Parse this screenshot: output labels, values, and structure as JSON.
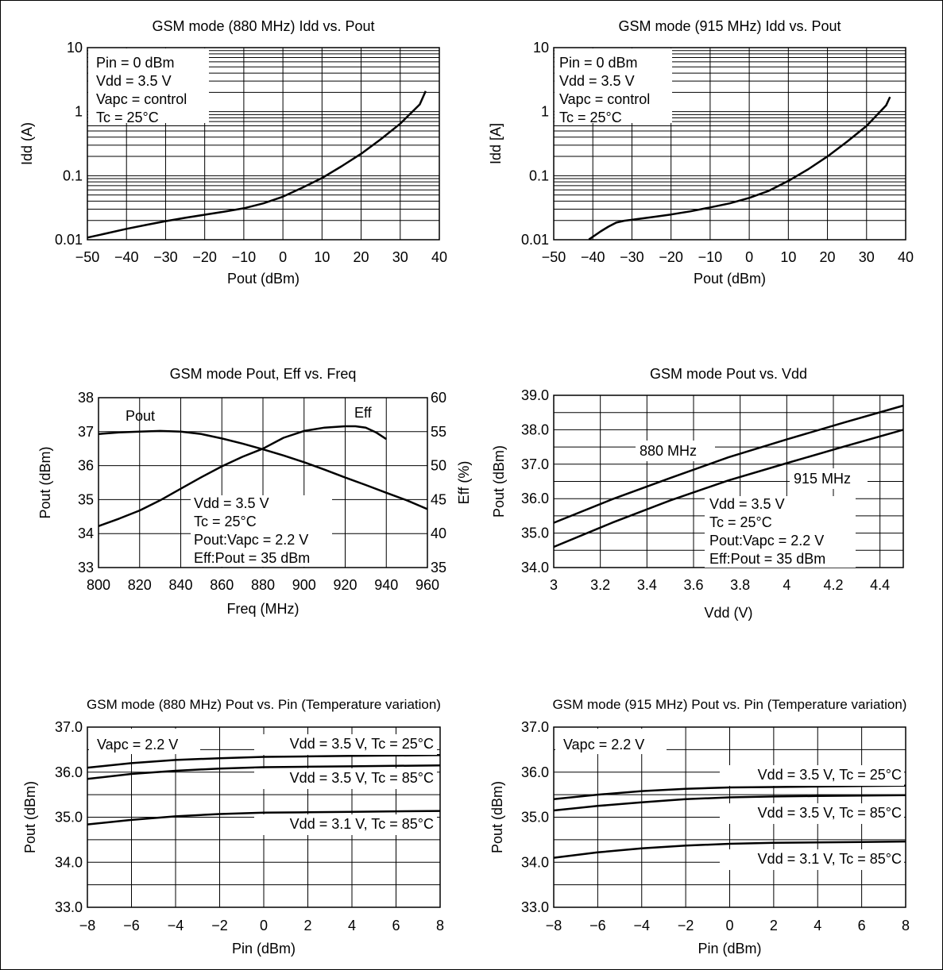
{
  "chart_data": [
    {
      "id": "c1",
      "type": "line",
      "title": "GSM mode (880 MHz) Idd vs. Pout",
      "xlabel": "Pout  (dBm)",
      "ylabel": "Idd  (A)",
      "xlim": [
        -50,
        40
      ],
      "ylim": [
        0.01,
        10
      ],
      "yscale": "log",
      "xticks": [
        -50,
        -40,
        -30,
        -20,
        -10,
        0,
        10,
        20,
        30,
        40
      ],
      "xtick_labels": [
        "−50",
        "−40",
        "−30",
        "−20",
        "−10",
        "0",
        "10",
        "20",
        "30",
        "40"
      ],
      "yticks": [
        0.01,
        0.1,
        1,
        10
      ],
      "ytick_labels": [
        "0.01",
        "0.1",
        "1",
        "10"
      ],
      "grid": true,
      "annotation": [
        "Pin = 0 dBm",
        "Vdd = 3.5 V",
        "Vapc = control",
        "Tc = 25°C"
      ],
      "series": [
        {
          "x": [
            -50,
            -45,
            -40,
            -35,
            -30,
            -25,
            -20,
            -15,
            -10,
            -5,
            0,
            5,
            10,
            15,
            20,
            25,
            30,
            35,
            36.5
          ],
          "y": [
            0.0108,
            0.0126,
            0.0148,
            0.017,
            0.0195,
            0.022,
            0.0246,
            0.0275,
            0.031,
            0.037,
            0.047,
            0.065,
            0.092,
            0.14,
            0.22,
            0.37,
            0.65,
            1.3,
            2.1
          ]
        }
      ]
    },
    {
      "id": "c2",
      "type": "line",
      "title": "GSM mode (915 MHz) Idd vs. Pout",
      "xlabel": "Pout  (dBm)",
      "ylabel": "Idd [A]",
      "xlim": [
        -50,
        40
      ],
      "ylim": [
        0.01,
        10
      ],
      "yscale": "log",
      "xticks": [
        -50,
        -40,
        -30,
        -20,
        -10,
        0,
        10,
        20,
        30,
        40
      ],
      "xtick_labels": [
        "−50",
        "−40",
        "−30",
        "−20",
        "−10",
        "0",
        "10",
        "20",
        "30",
        "40"
      ],
      "yticks": [
        0.01,
        0.1,
        1,
        10
      ],
      "ytick_labels": [
        "0.01",
        "0.1",
        "1",
        "10"
      ],
      "grid": true,
      "annotation": [
        "Pin = 0 dBm",
        "Vdd = 3.5 V",
        "Vapc = control",
        "Tc = 25°C"
      ],
      "series": [
        {
          "x": [
            -41,
            -38,
            -36,
            -34,
            -32,
            -30,
            -25,
            -20,
            -15,
            -10,
            -5,
            0,
            5,
            10,
            15,
            20,
            25,
            30,
            35,
            36
          ],
          "y": [
            0.0101,
            0.0135,
            0.016,
            0.0185,
            0.0198,
            0.0205,
            0.0225,
            0.0248,
            0.0278,
            0.032,
            0.037,
            0.045,
            0.058,
            0.083,
            0.125,
            0.2,
            0.34,
            0.6,
            1.25,
            1.7
          ]
        }
      ]
    },
    {
      "id": "c3",
      "type": "line",
      "title": "GSM mode  Pout, Eff vs. Freq",
      "xlabel": "Freq  (MHz)",
      "ylabel": "Pout  (dBm)",
      "y2label": "Eff  (%)",
      "xlim": [
        800,
        960
      ],
      "ylim": [
        33,
        38
      ],
      "y2lim": [
        35,
        60
      ],
      "xticks": [
        800,
        820,
        840,
        860,
        880,
        900,
        920,
        940,
        960
      ],
      "xtick_labels": [
        "800",
        "820",
        "840",
        "860",
        "880",
        "900",
        "920",
        "940",
        "960"
      ],
      "yticks": [
        33,
        34,
        35,
        36,
        37,
        38
      ],
      "ytick_labels": [
        "33",
        "34",
        "35",
        "36",
        "37",
        "38"
      ],
      "y2ticks": [
        35,
        40,
        45,
        50,
        55,
        60
      ],
      "y2tick_labels": [
        "35",
        "40",
        "45",
        "50",
        "55",
        "60"
      ],
      "grid": true,
      "annotation": [
        "Vdd = 3.5 V",
        "Tc = 25°C",
        "Pout:Vapc = 2.2 V",
        "Eff:Pout = 35 dBm"
      ],
      "series": [
        {
          "name": "Pout",
          "axis": "left",
          "x": [
            800,
            810,
            820,
            830,
            840,
            850,
            860,
            870,
            880,
            890,
            900,
            910,
            920,
            930,
            940,
            950,
            960
          ],
          "y": [
            36.93,
            36.98,
            37.0,
            37.02,
            37.0,
            36.93,
            36.8,
            36.65,
            36.48,
            36.3,
            36.1,
            35.88,
            35.65,
            35.43,
            35.2,
            34.98,
            34.72
          ]
        },
        {
          "name": "Eff",
          "axis": "right",
          "x": [
            800,
            810,
            820,
            830,
            840,
            850,
            860,
            870,
            880,
            890,
            900,
            910,
            920,
            925,
            930,
            935,
            940
          ],
          "y": [
            41.1,
            42.2,
            43.4,
            44.9,
            46.6,
            48.3,
            49.9,
            51.3,
            52.5,
            54.1,
            55.1,
            55.6,
            55.8,
            55.8,
            55.6,
            54.9,
            53.9
          ]
        }
      ]
    },
    {
      "id": "c4",
      "type": "line",
      "title": "GSM mode  Pout vs. Vdd",
      "xlabel": "Vdd  (V)",
      "ylabel": "Pout  (dBm)",
      "xlim": [
        3,
        4.5
      ],
      "ylim": [
        34,
        39
      ],
      "xticks": [
        3,
        3.2,
        3.4,
        3.6,
        3.8,
        4,
        4.2,
        4.4
      ],
      "xtick_labels": [
        "3",
        "3.2",
        "3.4",
        "3.6",
        "3.8",
        "4",
        "4.2",
        "4.4"
      ],
      "yticks": [
        34,
        35,
        36,
        37,
        38,
        39
      ],
      "ytick_labels": [
        "34.0",
        "35.0",
        "36.0",
        "37.0",
        "38.0",
        "39.0"
      ],
      "grid": true,
      "annotation": [
        "Vdd = 3.5 V",
        "Tc = 25°C",
        "Pout:Vapc = 2.2 V",
        "Eff:Pout = 35 dBm"
      ],
      "series": [
        {
          "name": "880 MHz",
          "x": [
            3.0,
            3.25,
            3.5,
            3.75,
            4.0,
            4.25,
            4.5
          ],
          "y": [
            35.3,
            35.98,
            36.6,
            37.2,
            37.72,
            38.22,
            38.7
          ]
        },
        {
          "name": "915 MHz",
          "x": [
            3.0,
            3.25,
            3.5,
            3.75,
            4.0,
            4.25,
            4.5
          ],
          "y": [
            34.6,
            35.3,
            35.95,
            36.53,
            37.03,
            37.52,
            38.0
          ]
        }
      ]
    },
    {
      "id": "c5",
      "type": "line",
      "title": "GSM mode (880 MHz) Pout vs. Pin (Temperature variation)",
      "xlabel": "Pin  (dBm)",
      "ylabel": "Pout  (dBm)",
      "xlim": [
        -8,
        8
      ],
      "ylim": [
        33,
        37
      ],
      "xticks": [
        -8,
        -6,
        -4,
        -2,
        0,
        2,
        4,
        6,
        8
      ],
      "xtick_labels": [
        "−8",
        "−6",
        "−4",
        "−2",
        "0",
        "2",
        "4",
        "6",
        "8"
      ],
      "yticks": [
        33,
        34,
        35,
        36,
        37
      ],
      "ytick_labels": [
        "33.0",
        "34.0",
        "35.0",
        "36.0",
        "37.0"
      ],
      "grid": true,
      "annotation": [
        "Vapc = 2.2 V"
      ],
      "series": [
        {
          "name": "Vdd = 3.5 V, Tc = 25°C",
          "x": [
            -8,
            -6,
            -4,
            -2,
            0,
            2,
            4,
            6,
            8
          ],
          "y": [
            36.1,
            36.2,
            36.27,
            36.31,
            36.34,
            36.35,
            36.36,
            36.37,
            36.38
          ]
        },
        {
          "name": "Vdd = 3.5 V, Tc = 85°C",
          "x": [
            -8,
            -6,
            -4,
            -2,
            0,
            2,
            4,
            6,
            8
          ],
          "y": [
            35.85,
            35.96,
            36.03,
            36.08,
            36.11,
            36.12,
            36.13,
            36.14,
            36.15
          ]
        },
        {
          "name": "Vdd = 3.1 V, Tc = 85°C",
          "x": [
            -8,
            -6,
            -4,
            -2,
            0,
            2,
            4,
            6,
            8
          ],
          "y": [
            34.84,
            34.94,
            35.02,
            35.07,
            35.1,
            35.11,
            35.12,
            35.13,
            35.14
          ]
        }
      ]
    },
    {
      "id": "c6",
      "type": "line",
      "title": "GSM mode (915 MHz) Pout vs. Pin (Temperature variation)",
      "xlabel": "Pin  (dBm)",
      "ylabel": "Pout  (dBm)",
      "xlim": [
        -8,
        8
      ],
      "ylim": [
        33,
        37
      ],
      "xticks": [
        -8,
        -6,
        -4,
        -2,
        0,
        2,
        4,
        6,
        8
      ],
      "xtick_labels": [
        "−8",
        "−6",
        "−4",
        "−2",
        "0",
        "2",
        "4",
        "6",
        "8"
      ],
      "yticks": [
        33,
        34,
        35,
        36,
        37
      ],
      "ytick_labels": [
        "33.0",
        "34.0",
        "35.0",
        "36.0",
        "37.0"
      ],
      "grid": true,
      "annotation": [
        "Vapc = 2.2 V"
      ],
      "series": [
        {
          "name": "Vdd = 3.5 V, Tc = 25°C",
          "x": [
            -8,
            -6,
            -4,
            -2,
            0,
            2,
            4,
            6,
            8
          ],
          "y": [
            35.4,
            35.5,
            35.58,
            35.63,
            35.66,
            35.67,
            35.68,
            35.69,
            35.7
          ]
        },
        {
          "name": "Vdd = 3.5 V, Tc = 85°C",
          "x": [
            -8,
            -6,
            -4,
            -2,
            0,
            2,
            4,
            6,
            8
          ],
          "y": [
            35.15,
            35.25,
            35.33,
            35.4,
            35.44,
            35.46,
            35.47,
            35.48,
            35.49
          ]
        },
        {
          "name": "Vdd = 3.1 V, Tc = 85°C",
          "x": [
            -8,
            -6,
            -4,
            -2,
            0,
            2,
            4,
            6,
            8
          ],
          "y": [
            34.1,
            34.22,
            34.31,
            34.37,
            34.41,
            34.43,
            34.44,
            34.45,
            34.46
          ]
        }
      ]
    }
  ]
}
